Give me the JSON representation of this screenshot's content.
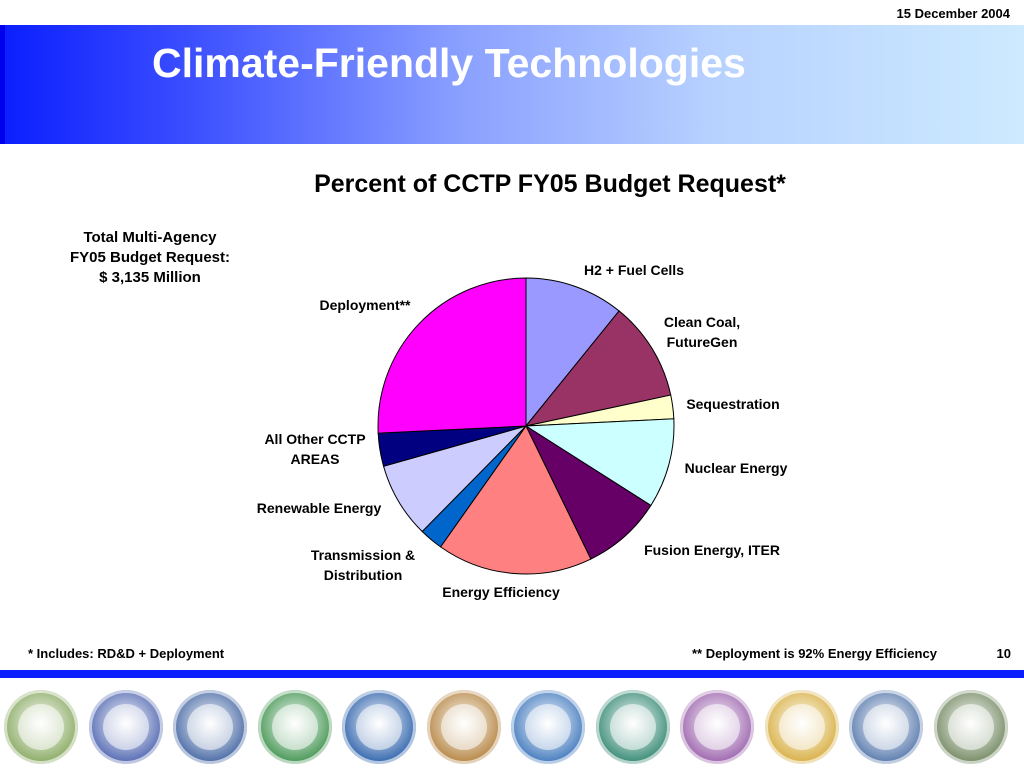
{
  "header": {
    "date": "15 December 2004",
    "title": "Climate-Friendly Technologies"
  },
  "total_box": {
    "line1": "Total Multi-Agency",
    "line2": "FY05 Budget Request:",
    "line3": "$ 3,135 Million"
  },
  "chart_data": {
    "type": "pie",
    "title": "Percent of CCTP FY05 Budget Request*",
    "start_angle_deg": 0,
    "direction": "clockwise",
    "slices": [
      {
        "label": "H2 + Fuel Cells",
        "value": 10.5,
        "color": "#9999ff"
      },
      {
        "label": "Clean Coal, FutureGen",
        "value": 10.5,
        "color": "#993366"
      },
      {
        "label": "Sequestration",
        "value": 2.5,
        "color": "#ffffcc"
      },
      {
        "label": "Nuclear Energy",
        "value": 9.5,
        "color": "#ccffff"
      },
      {
        "label": "Fusion Energy, ITER",
        "value": 8.5,
        "color": "#660066"
      },
      {
        "label": "Energy Efficiency",
        "value": 16.5,
        "color": "#ff8080"
      },
      {
        "label": "Transmission & Distribution",
        "value": 2.5,
        "color": "#0066cc"
      },
      {
        "label": "Renewable Energy",
        "value": 8.0,
        "color": "#ccccff"
      },
      {
        "label": "All Other CCTP AREAS",
        "value": 3.5,
        "color": "#000080"
      },
      {
        "label": "Deployment**",
        "value": 25.0,
        "color": "#ff00ff"
      }
    ]
  },
  "footer": {
    "left_note": "* Includes: RD&D + Deployment",
    "right_note": "** Deployment is 92% Energy Efficiency",
    "page_number": "10"
  },
  "seals": [
    {
      "name": "seal-agriculture",
      "color": "#8fae6a"
    },
    {
      "name": "seal-commerce",
      "color": "#5a6fb5"
    },
    {
      "name": "seal-defense",
      "color": "#4f6fa8"
    },
    {
      "name": "seal-energy",
      "color": "#4c9a5a"
    },
    {
      "name": "seal-health",
      "color": "#3a6bb0"
    },
    {
      "name": "seal-interior",
      "color": "#b88a4a"
    },
    {
      "name": "seal-transportation",
      "color": "#4a7fc0"
    },
    {
      "name": "seal-epa",
      "color": "#3f8f7a"
    },
    {
      "name": "seal-nasa",
      "color": "#a06ab0"
    },
    {
      "name": "seal-nsf",
      "color": "#d9b24a"
    },
    {
      "name": "seal-state",
      "color": "#5f7fb0"
    },
    {
      "name": "seal-executive-office",
      "color": "#7a8f6a"
    }
  ]
}
